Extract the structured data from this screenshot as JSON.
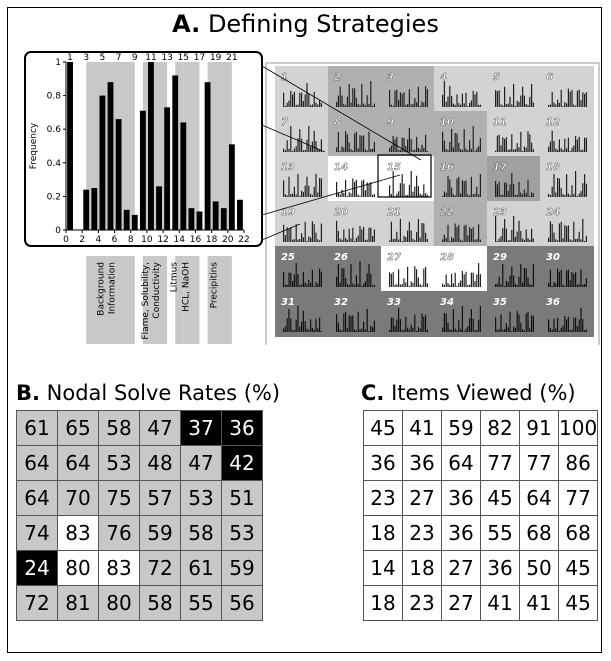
{
  "panel_a": {
    "letter": "A.",
    "title": "Defining Strategies",
    "chart_data": {
      "type": "bar",
      "ylabel": "Frequency",
      "ylim": [
        0,
        1
      ],
      "y_ticks": [
        0,
        0.2,
        0.4,
        0.6,
        0.8,
        1
      ],
      "x_ticks_bottom": [
        0,
        2,
        4,
        6,
        8,
        10,
        12,
        14,
        16,
        18,
        20,
        22
      ],
      "x_ticks_top": [
        1,
        3,
        5,
        7,
        9,
        11,
        13,
        15,
        17,
        19,
        21
      ],
      "categories": [
        1,
        2,
        3,
        4,
        5,
        6,
        7,
        8,
        9,
        10,
        11,
        12,
        13,
        14,
        15,
        16,
        17,
        18,
        19,
        20,
        21,
        22
      ],
      "values": [
        1,
        0,
        0.24,
        0.25,
        0.8,
        0.88,
        0.66,
        0.12,
        0.09,
        0.71,
        1,
        0.26,
        0.73,
        0.92,
        0.64,
        0.13,
        0.11,
        0.88,
        0.17,
        0.13,
        0.51,
        0.18
      ],
      "groups": [
        {
          "label": "Background Information",
          "range": [
            3,
            8
          ]
        },
        {
          "label": "Flame, Solubility, Conductivity",
          "range": [
            10,
            12
          ]
        },
        {
          "label": "Litmus",
          "range": [
            14,
            14
          ]
        },
        {
          "label": "HCL, NaOH",
          "range": [
            15,
            16
          ]
        },
        {
          "label": "Precipitins",
          "range": [
            18,
            20
          ]
        }
      ]
    },
    "nodes": [
      "1",
      "2",
      "3",
      "4",
      "5",
      "6",
      "7",
      "8",
      "9",
      "10",
      "11",
      "12",
      "13",
      "14",
      "15",
      "16",
      "17",
      "18",
      "19",
      "20",
      "21",
      "22",
      "23",
      "24",
      "25",
      "26",
      "27",
      "28",
      "29",
      "30",
      "31",
      "32",
      "33",
      "34",
      "35",
      "36"
    ],
    "node_shades": [
      "#d3d3d3",
      "#b0b0b0",
      "#b0b0b0",
      "#d3d3d3",
      "#d3d3d3",
      "#d3d3d3",
      "#d3d3d3",
      "#b0b0b0",
      "#b0b0b0",
      "#b0b0b0",
      "#d3d3d3",
      "#d3d3d3",
      "#d3d3d3",
      "#ffffff",
      "#ffffff",
      "#b0b0b0",
      "#a0a0a0",
      "#d3d3d3",
      "#d3d3d3",
      "#d3d3d3",
      "#d3d3d3",
      "#b0b0b0",
      "#d3d3d3",
      "#d3d3d3",
      "#7a7a7a",
      "#7a7a7a",
      "#ffffff",
      "#ffffff",
      "#7a7a7a",
      "#7a7a7a",
      "#7a7a7a",
      "#7a7a7a",
      "#7a7a7a",
      "#7a7a7a",
      "#7a7a7a",
      "#7a7a7a"
    ]
  },
  "panel_b": {
    "letter": "B.",
    "title": "Nodal Solve Rates (%)",
    "rows": [
      [
        "61",
        "65",
        "58",
        "47",
        "37",
        "36"
      ],
      [
        "64",
        "64",
        "53",
        "48",
        "47",
        "42"
      ],
      [
        "64",
        "70",
        "75",
        "57",
        "53",
        "51"
      ],
      [
        "74",
        "83",
        "76",
        "59",
        "58",
        "53"
      ],
      [
        "24",
        "80",
        "83",
        "72",
        "61",
        "59"
      ],
      [
        "72",
        "81",
        "80",
        "58",
        "55",
        "56"
      ]
    ],
    "shading": [
      [
        "g",
        "g",
        "g",
        "g",
        "k",
        "k"
      ],
      [
        "g",
        "g",
        "g",
        "g",
        "g",
        "k"
      ],
      [
        "g",
        "g",
        "g",
        "g",
        "g",
        "g"
      ],
      [
        "g",
        "w",
        "g",
        "g",
        "g",
        "g"
      ],
      [
        "k",
        "w",
        "w",
        "g",
        "g",
        "g"
      ],
      [
        "g",
        "g",
        "g",
        "g",
        "g",
        "g"
      ]
    ]
  },
  "panel_c": {
    "letter": "C.",
    "title": "Items Viewed (%)",
    "rows": [
      [
        "45",
        "41",
        "59",
        "82",
        "91",
        "100"
      ],
      [
        "36",
        "36",
        "64",
        "77",
        "77",
        "86"
      ],
      [
        "23",
        "27",
        "36",
        "45",
        "64",
        "77"
      ],
      [
        "18",
        "23",
        "36",
        "55",
        "68",
        "68"
      ],
      [
        "14",
        "18",
        "27",
        "36",
        "50",
        "45"
      ],
      [
        "18",
        "23",
        "27",
        "41",
        "41",
        "45"
      ]
    ]
  }
}
